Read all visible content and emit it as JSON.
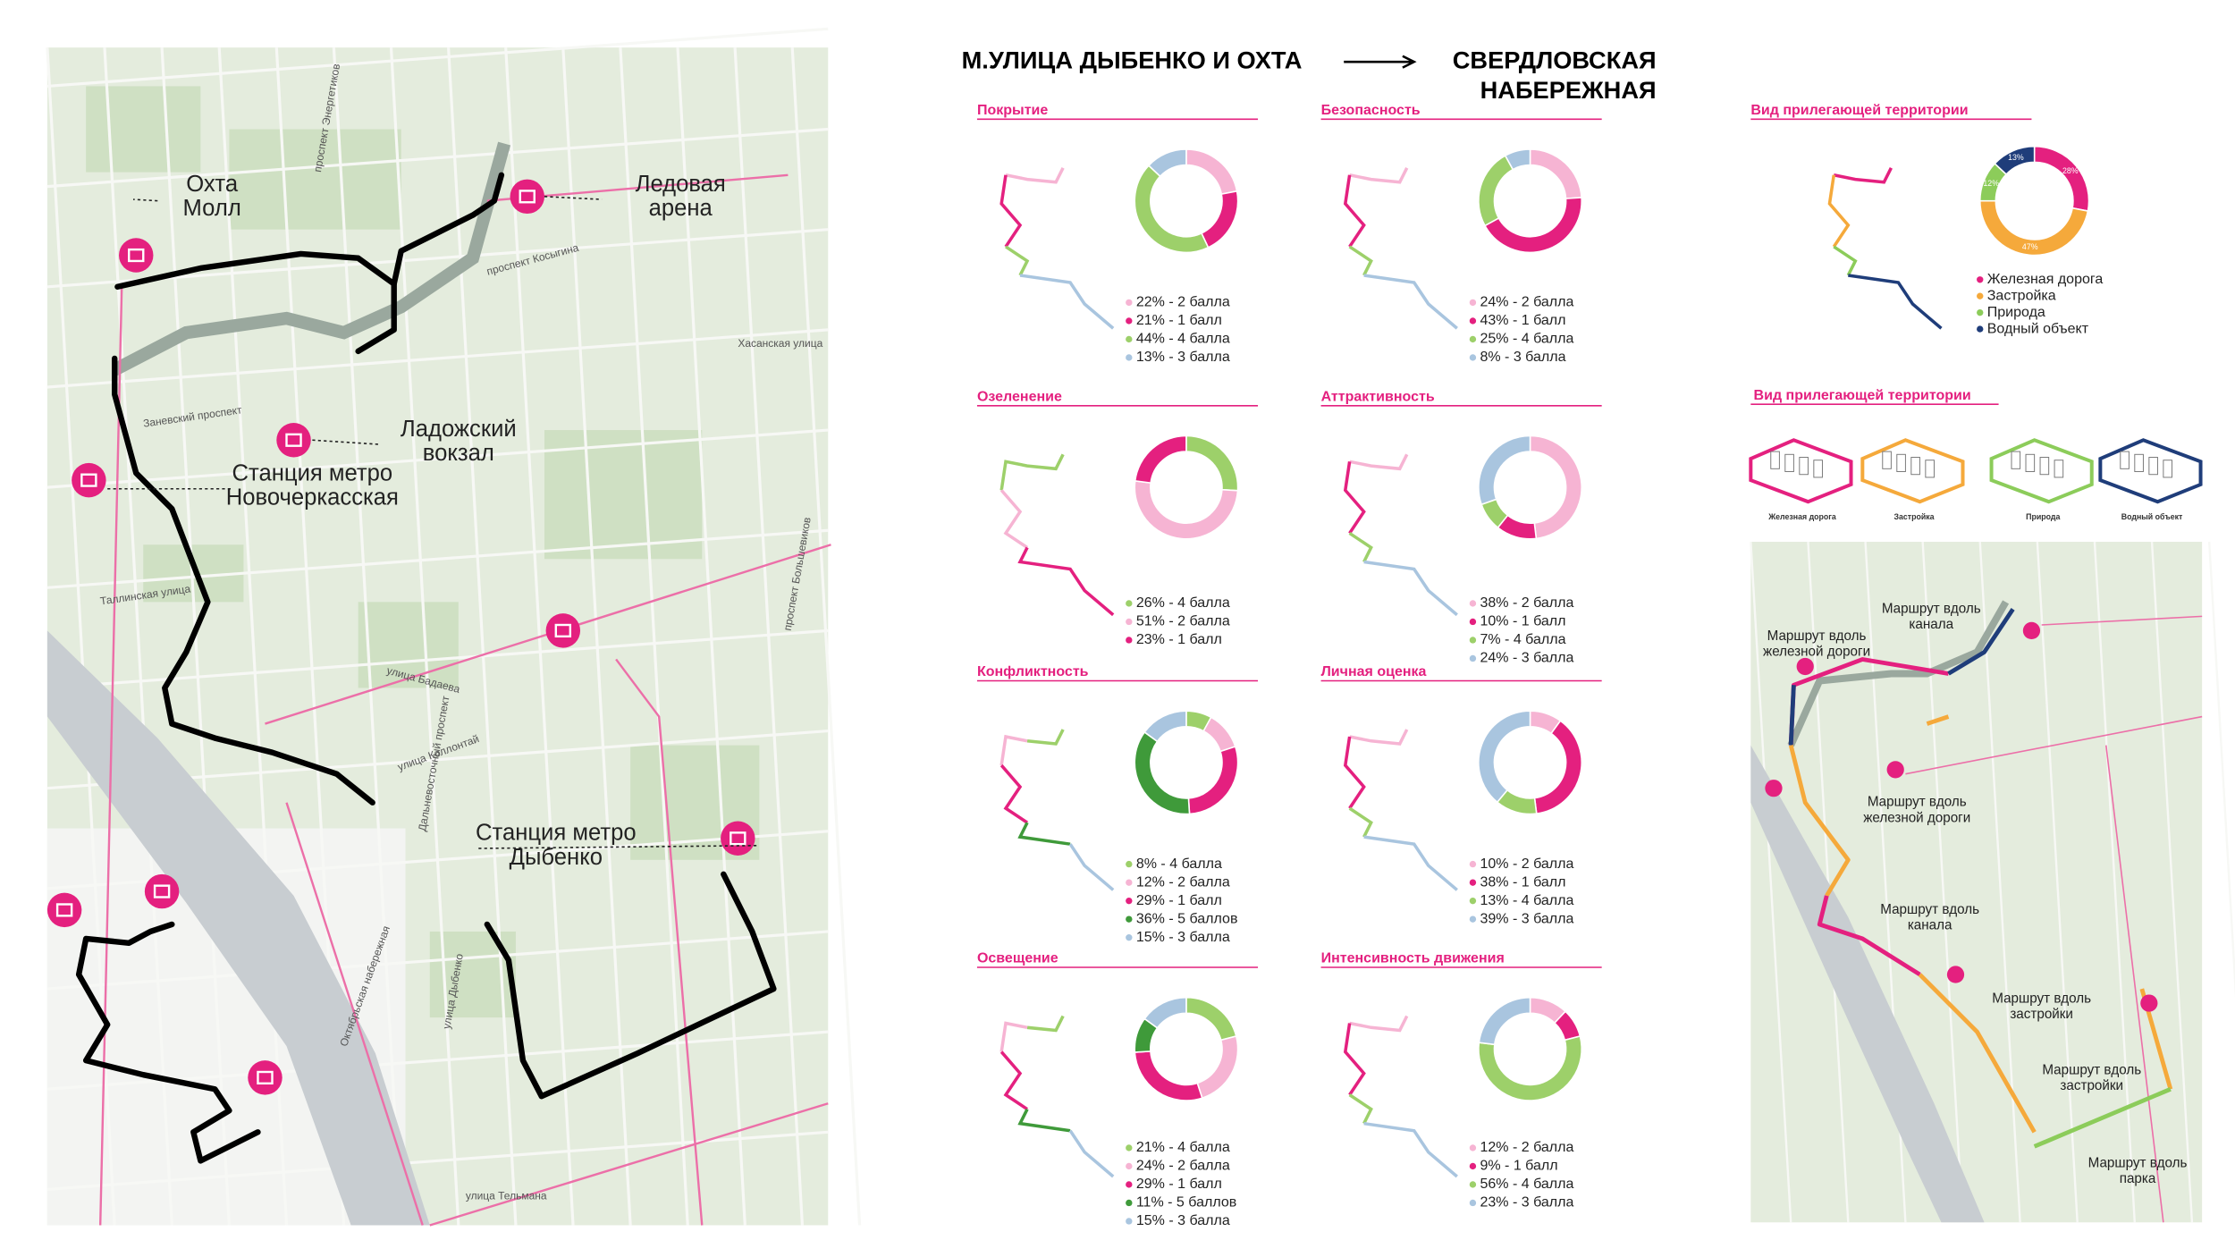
{
  "header": {
    "from": "М.УЛИЦА ДЫБЕНКО И ОХТА",
    "to_line1": "СВЕРДЛОВСКАЯ",
    "to_line2": "НАБЕРЕЖНАЯ"
  },
  "map_left": {
    "places": [
      {
        "lines": [
          "Охта",
          "Молл"
        ]
      },
      {
        "lines": [
          "Ледовая",
          "арена"
        ]
      },
      {
        "lines": [
          "Ладожский",
          "вокзал"
        ]
      },
      {
        "lines": [
          "Станция метро",
          "Новочеркасская"
        ]
      },
      {
        "lines": [
          "Станция метро",
          "Дыбенко"
        ]
      }
    ],
    "streets": [
      "проспект Энергетиков",
      "Заневский проспект",
      "улица Коллонтай",
      "проспект Большевиков",
      "улица Дыбенко",
      "Октябрьская набережная",
      "улица Бадаева",
      "Хасанская улица",
      "Таллинская улица",
      "улица Тельмана",
      "проспект Косыгина",
      "Дальневосточный проспект"
    ]
  },
  "chart_data": [
    {
      "type": "pie",
      "title": "Покрытие",
      "categories": [
        "22% - 2 балла",
        "21% - 1 балл",
        "44% - 4 балла",
        "13% - 3 балла"
      ],
      "values": [
        22,
        21,
        44,
        13
      ],
      "colors": [
        "#f6b4d3",
        "#e4207f",
        "#9dd06a",
        "#a9c5df"
      ]
    },
    {
      "type": "pie",
      "title": "Безопасность",
      "categories": [
        "24% - 2 балла",
        "43% - 1 балл",
        "25% - 4 балла",
        "8% - 3 балла"
      ],
      "values": [
        24,
        43,
        25,
        8
      ],
      "colors": [
        "#f6b4d3",
        "#e4207f",
        "#9dd06a",
        "#a9c5df"
      ]
    },
    {
      "type": "pie",
      "title": "Озеленение",
      "categories": [
        "26% - 4 балла",
        "51% - 2 балла",
        "23% - 1 балл"
      ],
      "values": [
        26,
        51,
        23
      ],
      "colors": [
        "#9dd06a",
        "#f6b4d3",
        "#e4207f"
      ]
    },
    {
      "type": "pie",
      "title": "Аттрактивность",
      "categories": [
        "38% - 2 балла",
        "10% - 1 балл",
        "7% - 4 балла",
        "24% - 3 балла"
      ],
      "values": [
        38,
        10,
        7,
        24
      ],
      "colors": [
        "#f6b4d3",
        "#e4207f",
        "#9dd06a",
        "#a9c5df"
      ]
    },
    {
      "type": "pie",
      "title": "Конфликтность",
      "categories": [
        "8% - 4 балла",
        "12% - 2 балла",
        "29% - 1 балл",
        "36% - 5 баллов",
        "15% - 3 балла"
      ],
      "values": [
        8,
        12,
        29,
        36,
        15
      ],
      "colors": [
        "#9dd06a",
        "#f6b4d3",
        "#e4207f",
        "#3f9a3a",
        "#a9c5df"
      ]
    },
    {
      "type": "pie",
      "title": "Личная оценка",
      "categories": [
        "10% - 2 балла",
        "38% - 1 балл",
        "13% - 4 балла",
        "39% - 3 балла"
      ],
      "values": [
        10,
        38,
        13,
        39
      ],
      "colors": [
        "#f6b4d3",
        "#e4207f",
        "#9dd06a",
        "#a9c5df"
      ]
    },
    {
      "type": "pie",
      "title": "Освещение",
      "categories": [
        "21% - 4 балла",
        "24% - 2 балла",
        "29% - 1 балл",
        "11% - 5 баллов",
        "15% - 3 балла"
      ],
      "values": [
        21,
        24,
        29,
        11,
        15
      ],
      "colors": [
        "#9dd06a",
        "#f6b4d3",
        "#e4207f",
        "#3f9a3a",
        "#a9c5df"
      ]
    },
    {
      "type": "pie",
      "title": "Интенсивность движения",
      "categories": [
        "12% - 2 балла",
        "9% - 1 балл",
        "56% - 4 балла",
        "23% - 3 балла"
      ],
      "values": [
        12,
        9,
        56,
        23
      ],
      "colors": [
        "#f6b4d3",
        "#e4207f",
        "#9dd06a",
        "#a9c5df"
      ]
    },
    {
      "type": "pie",
      "title": "Вид прилегающей территории",
      "categories": [
        "Железная дорога",
        "Застройка",
        "Природа",
        "Водный объект"
      ],
      "values": [
        28,
        47,
        12,
        13
      ],
      "value_labels": [
        "28%",
        "47%",
        "12%",
        "13%"
      ],
      "colors": [
        "#e4207f",
        "#f5a93b",
        "#8ccc5a",
        "#1f3d7a"
      ]
    }
  ],
  "territory_types": {
    "title": "Вид прилегающей территории",
    "items": [
      "Железная дорога",
      "Застройка",
      "Природа",
      "Водный объект"
    ],
    "colors": [
      "#e4207f",
      "#f5a93b",
      "#8ccc5a",
      "#1f3d7a"
    ]
  },
  "map_right": {
    "labels": [
      {
        "lines": [
          "Маршрут вдоль",
          "канала"
        ]
      },
      {
        "lines": [
          "Маршрут вдоль",
          "железной дороги"
        ]
      },
      {
        "lines": [
          "Маршрут вдоль",
          "железной дороги"
        ]
      },
      {
        "lines": [
          "Маршрут вдоль",
          "канала"
        ]
      },
      {
        "lines": [
          "Маршрут вдоль",
          "застройки"
        ]
      },
      {
        "lines": [
          "Маршрут вдоль",
          "застройки"
        ]
      },
      {
        "lines": [
          "Маршрут вдоль",
          "парка"
        ]
      }
    ]
  }
}
